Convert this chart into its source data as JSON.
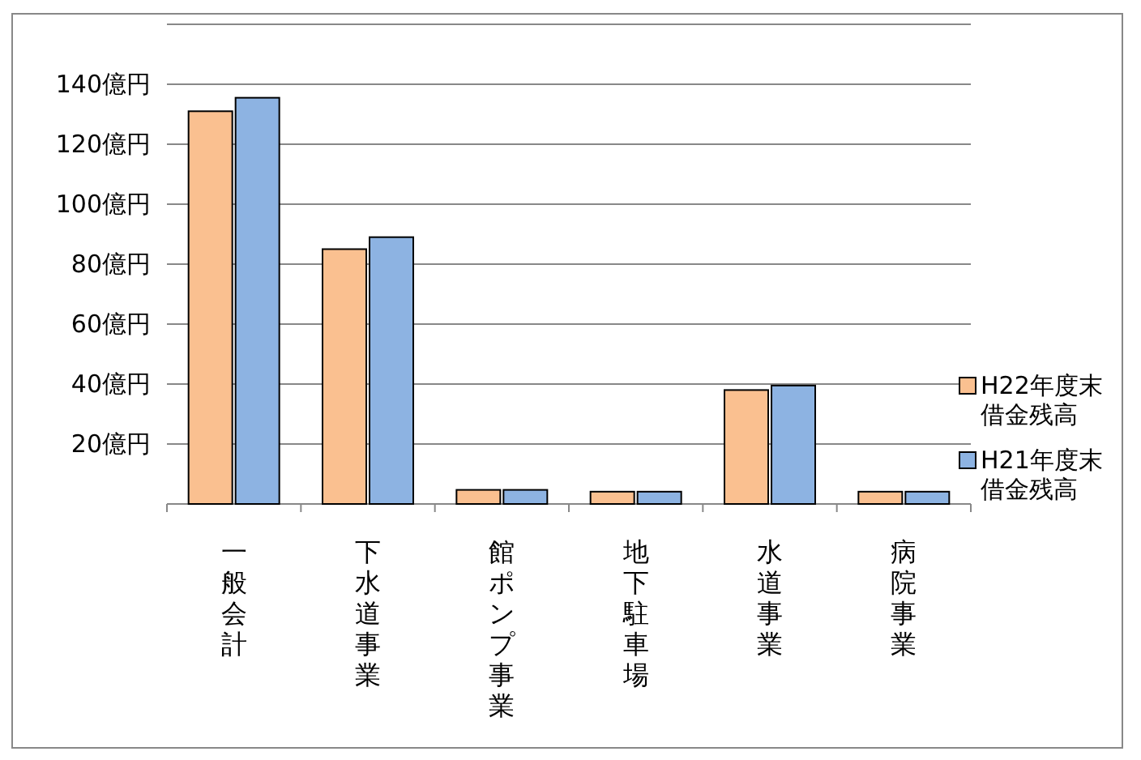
{
  "chart_data": {
    "type": "bar",
    "categories": [
      "一般会計",
      "下水道事業",
      "館ポンプ事業",
      "地下駐車場",
      "水道事業",
      "病院事業"
    ],
    "series": [
      {
        "name": "H22年度末借金残高",
        "color": "#fac090",
        "values": [
          131,
          85,
          4.7,
          4.1,
          38,
          4.1
        ]
      },
      {
        "name": "H21年度末借金残高",
        "color": "#8db3e2",
        "values": [
          135.5,
          89,
          4.7,
          4.1,
          39.5,
          4.1
        ]
      }
    ],
    "ylim": [
      0,
      160
    ],
    "yticks": [
      {
        "value": 0,
        "label": null
      },
      {
        "value": 20,
        "label": "20億円"
      },
      {
        "value": 40,
        "label": "40億円"
      },
      {
        "value": 60,
        "label": "60億円"
      },
      {
        "value": 80,
        "label": "80億円"
      },
      {
        "value": 100,
        "label": "100億円"
      },
      {
        "value": 120,
        "label": "120億円"
      },
      {
        "value": 140,
        "label": "140億円"
      },
      {
        "value": 160,
        "label": null
      }
    ],
    "grid": "y",
    "legend": "right"
  }
}
